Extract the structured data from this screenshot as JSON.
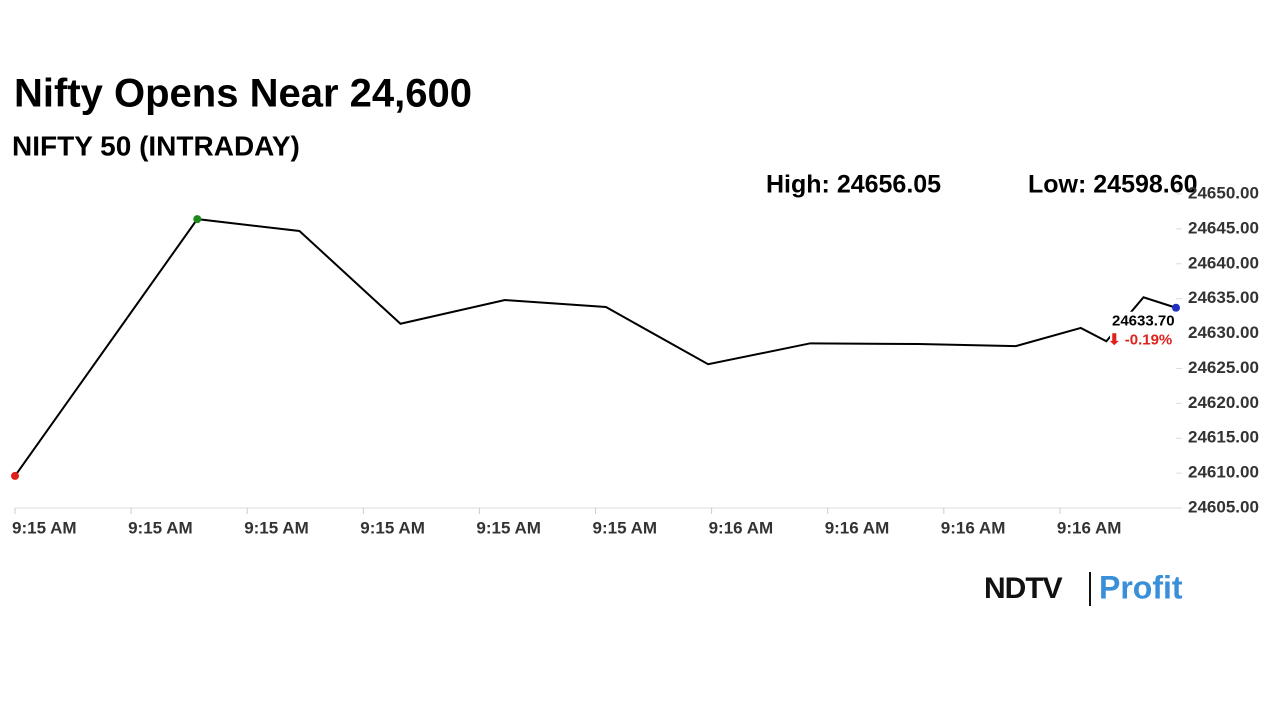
{
  "chart_data": {
    "type": "line",
    "title": "Nifty Opens Near 24,600",
    "subtitle": "NIFTY 50 (INTRADAY)",
    "annotations": [
      "High: 24656.05",
      "Low: 24598.60"
    ],
    "last_value_label": "24633.70",
    "change_label": "⬇ -0.19%",
    "x": [
      0,
      1.57,
      2.45,
      3.32,
      4.22,
      5.09,
      5.97,
      6.85,
      7.78,
      8.62,
      9.18,
      9.4,
      9.72,
      10
    ],
    "values": [
      24609.6,
      24646.4,
      24644.7,
      24631.4,
      24634.8,
      24633.8,
      24625.6,
      24628.6,
      24628.5,
      24628.2,
      24630.8,
      24628.9,
      24635.2,
      24633.7
    ],
    "color": "#000000",
    "start_color": "#e0201b",
    "high_color": "#1a8a1a",
    "last_color": "#1f2fbf",
    "xlim": [
      0,
      10
    ],
    "xticks": [
      {
        "value": 0,
        "label": "9:15 AM"
      },
      {
        "value": 1,
        "label": "9:15 AM"
      },
      {
        "value": 2,
        "label": "9:15 AM"
      },
      {
        "value": 3,
        "label": "9:15 AM"
      },
      {
        "value": 4,
        "label": "9:15 AM"
      },
      {
        "value": 5,
        "label": "9:15 AM"
      },
      {
        "value": 6,
        "label": "9:16 AM"
      },
      {
        "value": 7,
        "label": "9:16 AM"
      },
      {
        "value": 8,
        "label": "9:16 AM"
      },
      {
        "value": 9,
        "label": "9:16 AM"
      }
    ],
    "ylim": [
      24605,
      24650
    ],
    "yticks": [
      {
        "value": 24605,
        "label": "24605.00"
      },
      {
        "value": 24610,
        "label": "24610.00"
      },
      {
        "value": 24615,
        "label": "24615.00"
      },
      {
        "value": 24620,
        "label": "24620.00"
      },
      {
        "value": 24625,
        "label": "24625.00"
      },
      {
        "value": 24630,
        "label": "24630.00"
      },
      {
        "value": 24635,
        "label": "24635.00"
      },
      {
        "value": 24640,
        "label": "24640.00"
      },
      {
        "value": 24645,
        "label": "24645.00"
      },
      {
        "value": 24650,
        "label": "24650.00"
      }
    ]
  },
  "logo": {
    "brand": "NDTV",
    "product": "Profit"
  }
}
